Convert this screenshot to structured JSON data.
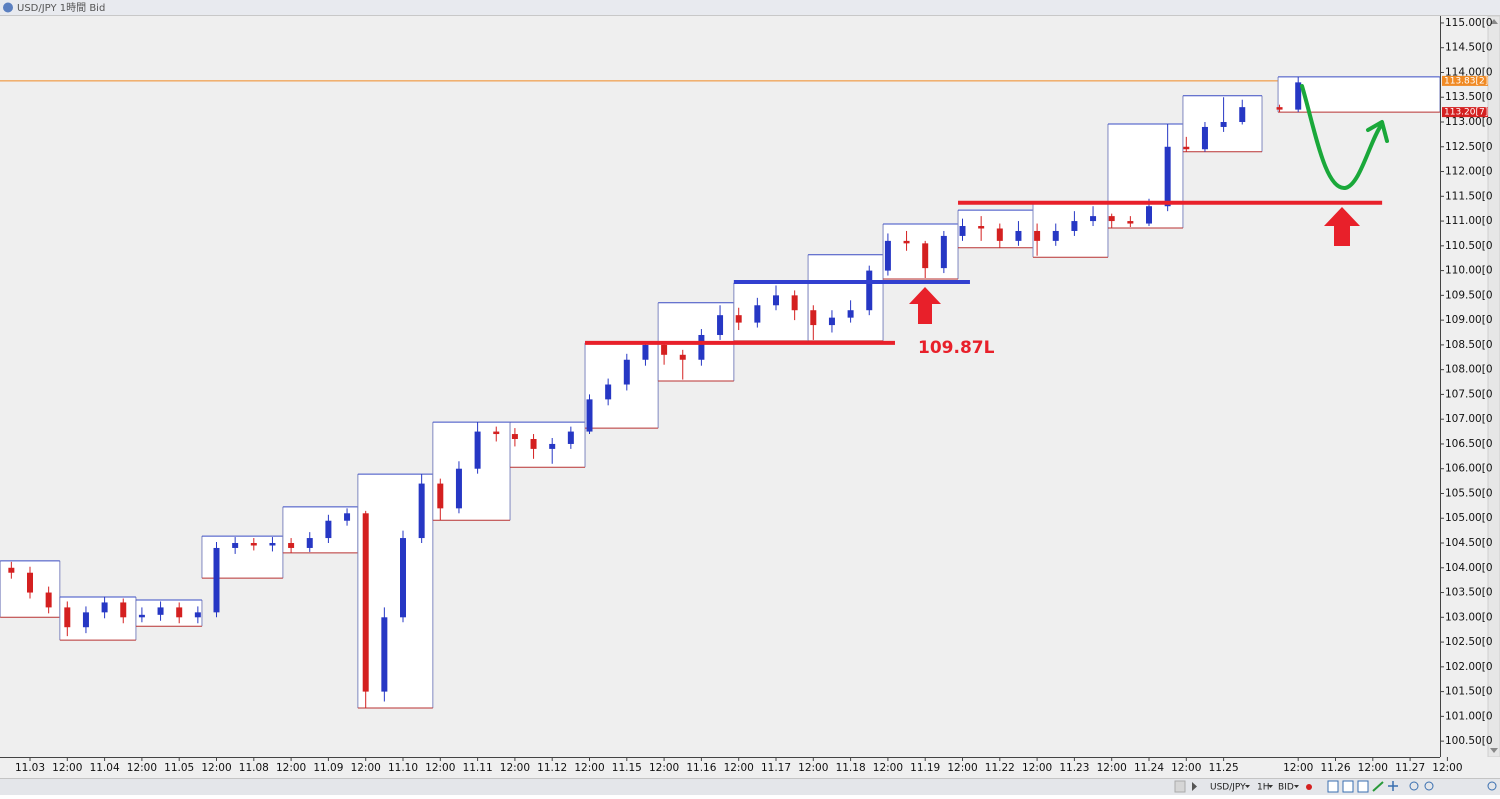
{
  "window": {
    "title": "USD/JPY 1時間 Bid"
  },
  "toolbar": [
    "USD/JPY",
    "1H",
    "BID"
  ],
  "chart_data": {
    "type": "candlestick",
    "annotation": "109.87L",
    "categories": [
      "11.03",
      "12:00",
      "11.04",
      "12:00",
      "11.05",
      "12:00",
      "11.08",
      "12:00",
      "11.09",
      "12:00",
      "11.10",
      "12:00",
      "11.11",
      "12:00",
      "11.12",
      "12:00",
      "11.15",
      "12:00",
      "11.16",
      "12:00",
      "11.17",
      "12:00",
      "11.18",
      "12:00",
      "11.19",
      "12:00",
      "11.22",
      "12:00",
      "11.23",
      "12:00",
      "11.24",
      "12:00",
      "11.25",
      null,
      "12:00",
      "11.26",
      "12:00",
      "11.27",
      "12:00"
    ],
    "ylim": [
      100.22,
      115.12
    ],
    "yticks": [
      {
        "value": 115,
        "label": "115.00[0"
      },
      {
        "value": 114.5,
        "label": "114.50[0"
      },
      {
        "value": 114,
        "label": "114.00[0"
      },
      {
        "value": 113.5,
        "label": "113.50[0"
      },
      {
        "value": 113,
        "label": "113.00[0"
      },
      {
        "value": 112.5,
        "label": "112.50[0"
      },
      {
        "value": 112,
        "label": "112.00[0"
      },
      {
        "value": 111.5,
        "label": "111.50[0"
      },
      {
        "value": 111,
        "label": "111.00[0"
      },
      {
        "value": 110.5,
        "label": "110.50[0"
      },
      {
        "value": 110,
        "label": "110.00[0"
      },
      {
        "value": 109.5,
        "label": "109.50[0"
      },
      {
        "value": 109,
        "label": "109.00[0"
      },
      {
        "value": 108.5,
        "label": "108.50[0"
      },
      {
        "value": 108,
        "label": "108.00[0"
      },
      {
        "value": 107.5,
        "label": "107.50[0"
      },
      {
        "value": 107,
        "label": "107.00[0"
      },
      {
        "value": 106.5,
        "label": "106.50[0"
      },
      {
        "value": 106,
        "label": "106.00[0"
      },
      {
        "value": 105.5,
        "label": "105.50[0"
      },
      {
        "value": 105,
        "label": "105.00[0"
      },
      {
        "value": 104.5,
        "label": "104.50[0"
      },
      {
        "value": 104,
        "label": "104.00[0"
      },
      {
        "value": 103.5,
        "label": "103.50[0"
      },
      {
        "value": 103,
        "label": "103.00[0"
      },
      {
        "value": 102.5,
        "label": "102.50[0"
      },
      {
        "value": 102,
        "label": "102.00[0"
      },
      {
        "value": 101.5,
        "label": "101.50[0"
      },
      {
        "value": 101,
        "label": "101.00[0"
      },
      {
        "value": 100.5,
        "label": "100.50[0"
      }
    ],
    "up_color": "#2637c4",
    "down_color": "#d42020",
    "box_top_color": "#3a4cc4",
    "box_bottom_color": "#b83232",
    "boxes": [
      [
        -0.8,
        0.8,
        104.14,
        103.0
      ],
      [
        0.8,
        2.84,
        103.41,
        102.54
      ],
      [
        2.84,
        4.61,
        103.35,
        102.82
      ],
      [
        4.61,
        6.78,
        104.64,
        103.79
      ],
      [
        6.78,
        8.79,
        105.23,
        104.3
      ],
      [
        8.79,
        10.8,
        105.89,
        101.17
      ],
      [
        10.8,
        12.87,
        106.94,
        104.96
      ],
      [
        12.87,
        14.88,
        106.94,
        106.03
      ],
      [
        14.88,
        16.84,
        108.54,
        106.82
      ],
      [
        16.84,
        18.87,
        109.35,
        107.77
      ],
      [
        18.87,
        20.86,
        109.75,
        108.58
      ],
      [
        20.86,
        22.87,
        110.32,
        108.58
      ],
      [
        22.87,
        24.88,
        110.94,
        109.83
      ],
      [
        24.88,
        26.89,
        111.22,
        110.46
      ],
      [
        26.89,
        28.9,
        111.37,
        110.27
      ],
      [
        28.9,
        30.91,
        112.96,
        110.86
      ],
      [
        30.91,
        33.03,
        113.53,
        112.4
      ],
      [
        33.46,
        37.8,
        113.91,
        113.2
      ]
    ],
    "candles": [
      [
        -0.5,
        104.0,
        104.12,
        103.78,
        103.9
      ],
      [
        0,
        103.9,
        104.02,
        103.38,
        103.5
      ],
      [
        0.5,
        103.5,
        103.62,
        103.08,
        103.2
      ],
      [
        1,
        103.2,
        103.32,
        102.62,
        102.8
      ],
      [
        1.5,
        102.8,
        103.22,
        102.68,
        103.1
      ],
      [
        2,
        103.1,
        103.42,
        102.98,
        103.3
      ],
      [
        2.5,
        103.3,
        103.38,
        102.88,
        103.0
      ],
      [
        3,
        103.0,
        103.2,
        102.9,
        103.05
      ],
      [
        3.5,
        103.05,
        103.32,
        102.93,
        103.2
      ],
      [
        4,
        103.2,
        103.3,
        102.88,
        103.0
      ],
      [
        4.5,
        103.0,
        103.22,
        102.88,
        103.1
      ],
      [
        5,
        103.1,
        104.52,
        103.0,
        104.4
      ],
      [
        5.5,
        104.4,
        104.62,
        104.28,
        104.5
      ],
      [
        6,
        104.5,
        104.6,
        104.35,
        104.45
      ],
      [
        6.5,
        104.45,
        104.62,
        104.33,
        104.5
      ],
      [
        7,
        104.5,
        104.6,
        104.3,
        104.4
      ],
      [
        7.5,
        104.4,
        104.72,
        104.32,
        104.6
      ],
      [
        8,
        104.6,
        105.07,
        104.5,
        104.95
      ],
      [
        8.5,
        104.95,
        105.2,
        104.85,
        105.1
      ],
      [
        9,
        105.1,
        105.15,
        101.17,
        101.5
      ],
      [
        9.5,
        101.5,
        103.2,
        101.3,
        103.0
      ],
      [
        10,
        103.0,
        104.75,
        102.9,
        104.6
      ],
      [
        10.5,
        104.6,
        105.89,
        104.5,
        105.7
      ],
      [
        11,
        105.7,
        105.8,
        104.96,
        105.2
      ],
      [
        11.5,
        105.2,
        106.15,
        105.1,
        106.0
      ],
      [
        12,
        106.0,
        106.94,
        105.9,
        106.75
      ],
      [
        12.5,
        106.75,
        106.85,
        106.55,
        106.7
      ],
      [
        13,
        106.7,
        106.82,
        106.45,
        106.6
      ],
      [
        13.5,
        106.6,
        106.7,
        106.2,
        106.4
      ],
      [
        14,
        106.4,
        106.62,
        106.1,
        106.5
      ],
      [
        14.5,
        106.5,
        106.85,
        106.4,
        106.75
      ],
      [
        15,
        106.75,
        107.5,
        106.7,
        107.4
      ],
      [
        15.5,
        107.4,
        107.82,
        107.28,
        107.7
      ],
      [
        16,
        107.7,
        108.32,
        107.58,
        108.2
      ],
      [
        16.5,
        108.2,
        108.54,
        108.08,
        108.5
      ],
      [
        17,
        108.5,
        108.54,
        108.1,
        108.3
      ],
      [
        17.5,
        108.3,
        108.4,
        107.8,
        108.2
      ],
      [
        18,
        108.2,
        108.82,
        108.08,
        108.7
      ],
      [
        18.5,
        108.7,
        109.3,
        108.6,
        109.1
      ],
      [
        19,
        109.1,
        109.25,
        108.8,
        108.95
      ],
      [
        19.5,
        108.95,
        109.45,
        108.85,
        109.3
      ],
      [
        20,
        109.3,
        109.7,
        109.2,
        109.5
      ],
      [
        20.5,
        109.5,
        109.6,
        109.0,
        109.2
      ],
      [
        21,
        109.2,
        109.3,
        108.6,
        108.9
      ],
      [
        21.5,
        108.9,
        109.2,
        108.75,
        109.05
      ],
      [
        22,
        109.05,
        109.4,
        108.95,
        109.2
      ],
      [
        22.5,
        109.2,
        110.1,
        109.1,
        110.0
      ],
      [
        23,
        110.0,
        110.75,
        109.9,
        110.6
      ],
      [
        23.5,
        110.6,
        110.8,
        110.4,
        110.55
      ],
      [
        24,
        110.55,
        110.6,
        109.85,
        110.05
      ],
      [
        24.5,
        110.05,
        110.8,
        109.95,
        110.7
      ],
      [
        25,
        110.7,
        111.05,
        110.6,
        110.9
      ],
      [
        25.5,
        110.9,
        111.1,
        110.6,
        110.85
      ],
      [
        26,
        110.85,
        110.95,
        110.46,
        110.6
      ],
      [
        26.5,
        110.6,
        111.0,
        110.5,
        110.8
      ],
      [
        27,
        110.8,
        110.95,
        110.3,
        110.6
      ],
      [
        27.5,
        110.6,
        110.95,
        110.5,
        110.8
      ],
      [
        28,
        110.8,
        111.2,
        110.7,
        111.0
      ],
      [
        28.5,
        111.0,
        111.3,
        110.9,
        111.1
      ],
      [
        29,
        111.1,
        111.15,
        110.86,
        111.0
      ],
      [
        29.5,
        111.0,
        111.1,
        110.88,
        110.95
      ],
      [
        30,
        110.95,
        111.45,
        110.9,
        111.3
      ],
      [
        30.5,
        111.3,
        112.96,
        111.2,
        112.5
      ],
      [
        31,
        112.5,
        112.7,
        112.4,
        112.45
      ],
      [
        31.5,
        112.45,
        113.0,
        112.4,
        112.9
      ],
      [
        32,
        112.9,
        113.5,
        112.8,
        113.0
      ],
      [
        32.5,
        113.0,
        113.45,
        112.95,
        113.3
      ],
      [
        33.5,
        113.3,
        113.35,
        113.2,
        113.25
      ],
      [
        34,
        113.25,
        113.91,
        113.2,
        113.8
      ]
    ],
    "levels": [
      {
        "value": 108.54,
        "from": 14.88,
        "to": 23.19,
        "color": "#e8202a"
      },
      {
        "value": 109.77,
        "from": 18.87,
        "to": 25.2,
        "color": "#3240d0"
      },
      {
        "value": 111.37,
        "from": 24.88,
        "to": 36.25,
        "color": "#e8202a"
      }
    ],
    "price_line": {
      "value": 113.83,
      "color": "#f08a24"
    },
    "price_badges": [
      {
        "value": 113.83,
        "label": "113.83[2]",
        "color": "#f08a24"
      },
      {
        "value": 113.2,
        "label": "113.20[7]",
        "color": "#d42020"
      }
    ]
  }
}
